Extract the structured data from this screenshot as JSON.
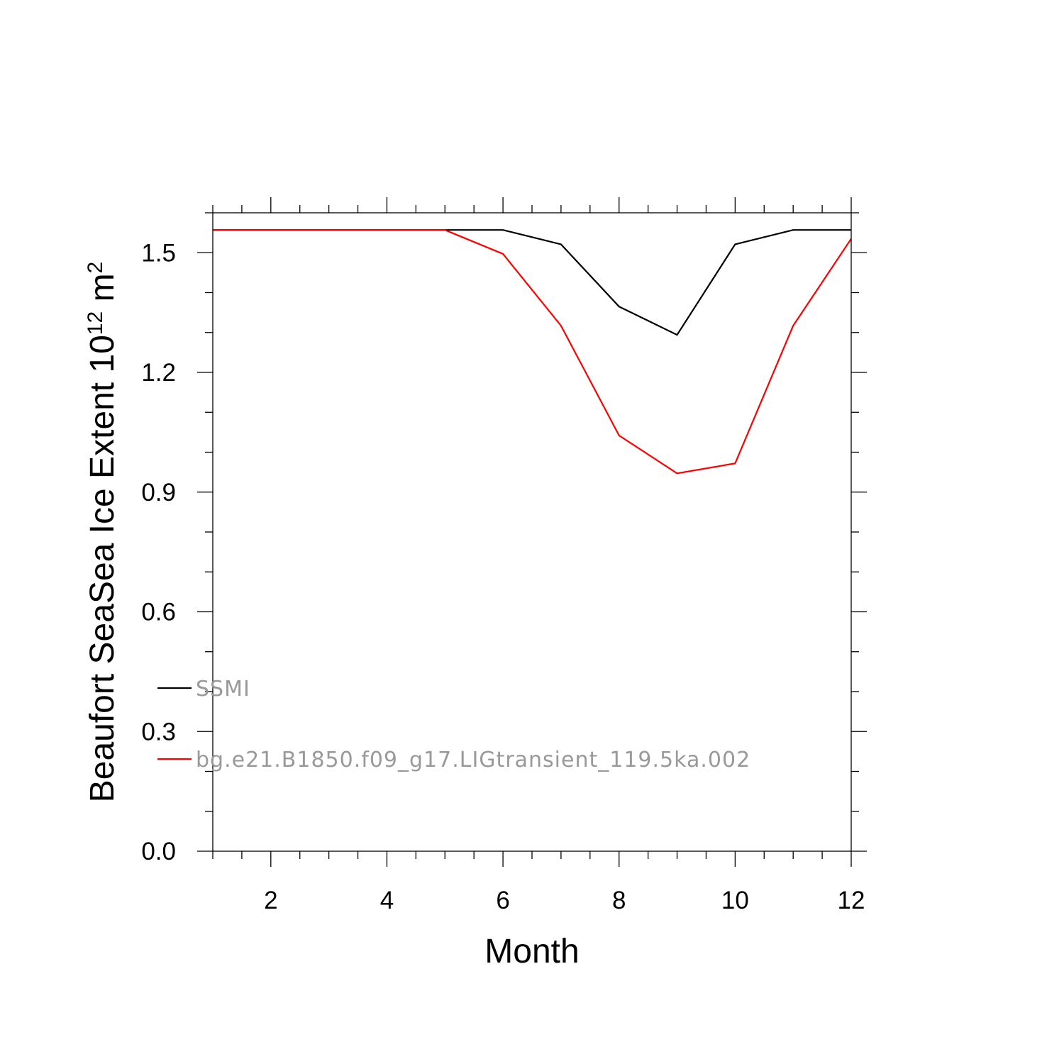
{
  "chart_data": {
    "type": "line",
    "xlabel": "Month",
    "ylabel": {
      "prefix": "Beaufort SeaSea Ice Extent 10",
      "exponent": "12",
      "unit": " m",
      "unit_exponent": "2"
    },
    "xlim": [
      1,
      12
    ],
    "ylim": [
      0,
      1.6
    ],
    "x_major_ticks": [
      2,
      4,
      6,
      8,
      10,
      12
    ],
    "x_minor_step": 0.5,
    "y_major_ticks": [
      0.0,
      0.3,
      0.6,
      0.9,
      1.2,
      1.5
    ],
    "y_tick_labels": [
      "0.0",
      "0.3",
      "0.6",
      "0.9",
      "1.2",
      "1.5"
    ],
    "y_minor_step": 0.1,
    "grid": false,
    "legend_position": "bottom-left",
    "x": [
      1,
      2,
      3,
      4,
      5,
      6,
      7,
      8,
      9,
      10,
      11,
      12
    ],
    "series": [
      {
        "name": "SSMI",
        "color": "#000000",
        "values": [
          1.557,
          1.557,
          1.557,
          1.557,
          1.557,
          1.557,
          1.521,
          1.365,
          1.294,
          1.521,
          1.557,
          1.557
        ]
      },
      {
        "name": "bg.e21.B1850.f09_g17.LIGtransient_119.5ka.002",
        "color": "#ff0000",
        "values": [
          1.557,
          1.557,
          1.557,
          1.557,
          1.557,
          1.497,
          1.317,
          1.042,
          0.947,
          0.972,
          1.317,
          1.535
        ]
      }
    ]
  }
}
